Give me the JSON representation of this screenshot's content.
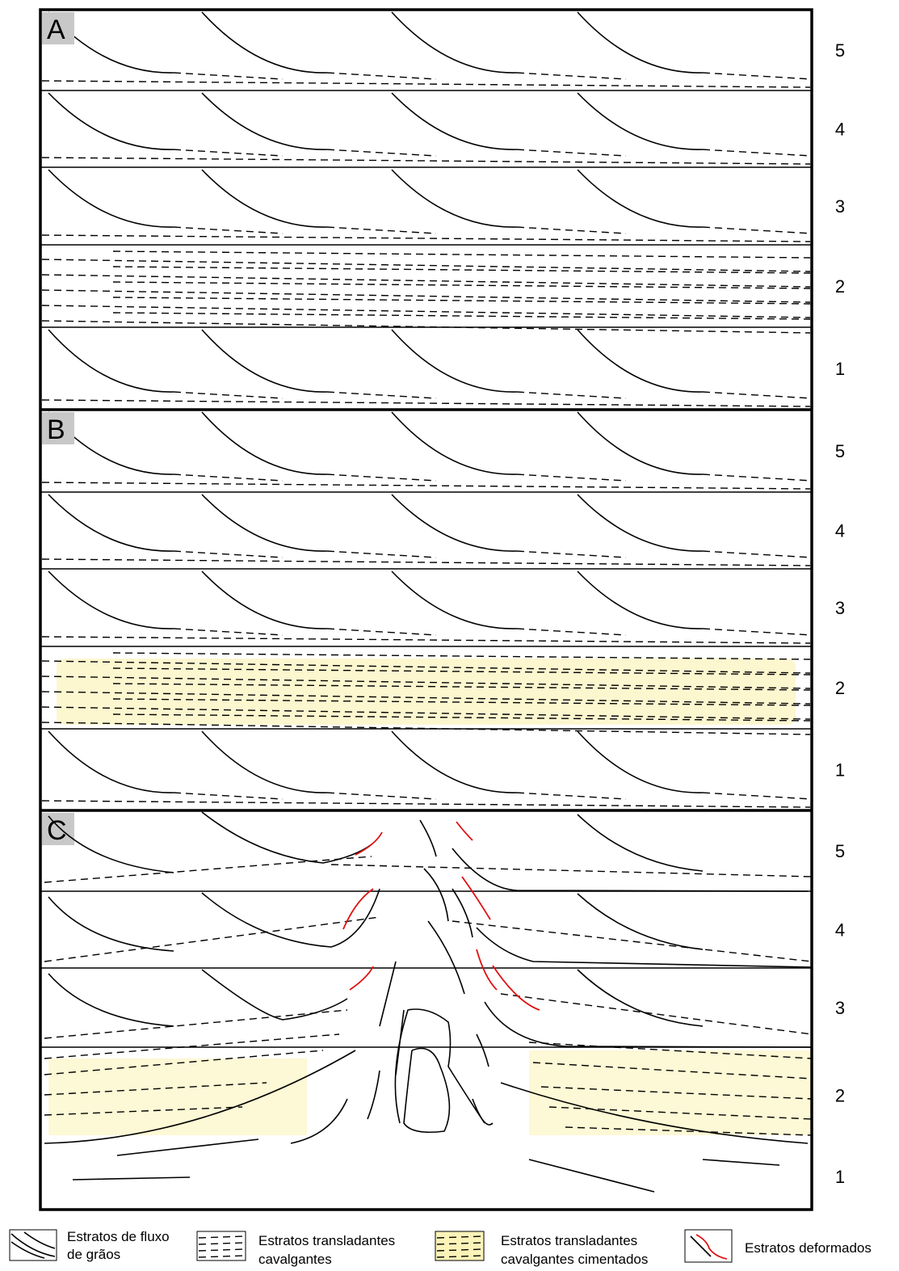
{
  "panels": [
    {
      "label": "A",
      "layers": [
        "5",
        "4",
        "3",
        "2",
        "1"
      ]
    },
    {
      "label": "B",
      "layers": [
        "5",
        "4",
        "3",
        "2",
        "1"
      ]
    },
    {
      "label": "C",
      "layers": [
        "5",
        "4",
        "3",
        "2",
        "1"
      ]
    }
  ],
  "legend": [
    {
      "lines": [
        "Estratos de fluxo",
        "de grãos"
      ]
    },
    {
      "lines": [
        "Estratos transladantes",
        "cavalgantes"
      ]
    },
    {
      "lines": [
        "Estratos transladantes",
        "cavalgantes cimentados"
      ]
    },
    {
      "lines": [
        "Estratos deformados"
      ]
    }
  ]
}
